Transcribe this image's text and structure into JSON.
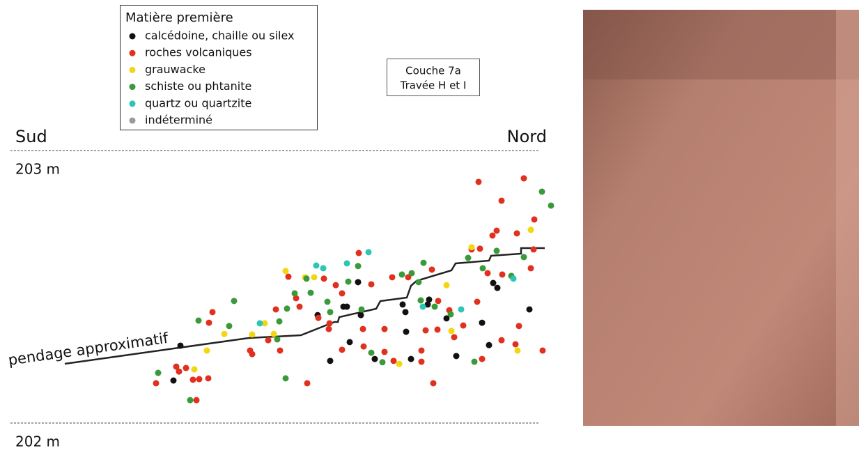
{
  "chart_data": {
    "type": "scatter",
    "legend_title": "Matière première",
    "annotations": [
      "Couche 7a",
      "Travée H et I"
    ],
    "left_label": "Sud",
    "right_label": "Nord",
    "line_label": "pendage approximatif",
    "xlim": [
      0,
      760
    ],
    "ylim": [
      202,
      203
    ],
    "yticks": [
      {
        "value": 203,
        "label": "203 m"
      },
      {
        "value": 202,
        "label": "202 m"
      }
    ],
    "grid": true,
    "series": [
      {
        "name": "calcédoine, chaille ou silex",
        "color": "#111111",
        "x": [
          244,
          234,
          499,
          478,
          483,
          503,
          441,
          563,
          601,
          599,
          567,
          626,
          693,
          699,
          677,
          745,
          687,
          640,
          575,
          523,
          459,
          487,
          568
        ],
        "values": [
          202.284,
          202.156,
          202.517,
          202.427,
          202.427,
          202.396,
          202.396,
          202.435,
          202.453,
          202.435,
          202.407,
          202.384,
          202.514,
          202.496,
          202.368,
          202.417,
          202.286,
          202.246,
          202.235,
          202.235,
          202.228,
          202.297,
          202.335
        ]
      },
      {
        "name": "roches volcaniques",
        "color": "#e0301e",
        "x": [
          672,
          737,
          705,
          752,
          727,
          698,
          692,
          751,
          674,
          706,
          685,
          670,
          730,
          764,
          725,
          705,
          677,
          650,
          637,
          613,
          596,
          590,
          590,
          607,
          550,
          537,
          507,
          506,
          537,
          476,
          457,
          426,
          387,
          370,
          344,
          347,
          381,
          415,
          410,
          442,
          458,
          467,
          476,
          450,
          399,
          518,
          500,
          548,
          571,
          605,
          614,
          630,
          285,
          290,
          271,
          284,
          262,
          252,
          242,
          238,
          267,
          209,
          662,
          747
        ],
        "values": [
          202.885,
          202.898,
          202.816,
          202.747,
          202.696,
          202.706,
          202.688,
          202.637,
          202.64,
          202.545,
          202.55,
          202.445,
          202.356,
          202.266,
          202.289,
          202.304,
          202.235,
          202.358,
          202.315,
          202.343,
          202.34,
          202.266,
          202.225,
          202.146,
          202.228,
          202.261,
          202.281,
          202.345,
          202.345,
          202.269,
          202.345,
          202.146,
          202.266,
          202.304,
          202.266,
          202.253,
          202.417,
          202.427,
          202.458,
          202.386,
          202.366,
          202.506,
          202.476,
          202.53,
          202.537,
          202.509,
          202.624,
          202.535,
          202.535,
          202.563,
          202.448,
          202.414,
          202.368,
          202.407,
          202.161,
          202.164,
          202.159,
          202.202,
          202.189,
          202.207,
          202.084,
          202.146,
          202.637,
          202.568
        ]
      },
      {
        "name": "grauwacke",
        "color": "#f2d612",
        "x": [
          747,
          662,
          395,
          423,
          436,
          365,
          378,
          347,
          307,
          282,
          264,
          558,
          728,
          633,
          626
        ],
        "values": [
          202.709,
          202.645,
          202.558,
          202.535,
          202.535,
          202.366,
          202.327,
          202.325,
          202.327,
          202.266,
          202.197,
          202.217,
          202.266,
          202.338,
          202.506
        ]
      },
      {
        "name": "schiste ou phtanite",
        "color": "#3a9a3a",
        "x": [
          763,
          776,
          737,
          698,
          678,
          657,
          719,
          666,
          632,
          593,
          576,
          562,
          586,
          589,
          609,
          504,
          499,
          485,
          455,
          459,
          431,
          408,
          397,
          386,
          383,
          321,
          314,
          270,
          212,
          258,
          395,
          518,
          534,
          425
        ],
        "values": [
          202.849,
          202.798,
          202.609,
          202.632,
          202.568,
          202.606,
          202.54,
          202.225,
          202.399,
          202.588,
          202.55,
          202.545,
          202.517,
          202.45,
          202.427,
          202.417,
          202.576,
          202.519,
          202.445,
          202.407,
          202.478,
          202.476,
          202.42,
          202.373,
          202.307,
          202.448,
          202.356,
          202.376,
          202.184,
          202.084,
          202.164,
          202.258,
          202.223,
          202.53
        ]
      },
      {
        "name": "quartz ou quartzite",
        "color": "#2ec4b6",
        "x": [
          439,
          449,
          483,
          514,
          592,
          647,
          358,
          722
        ],
        "values": [
          202.578,
          202.568,
          202.586,
          202.627,
          202.427,
          202.417,
          202.366,
          202.53
        ]
      },
      {
        "name": "indéterminé",
        "color": "#9a9a9a",
        "x": [],
        "values": []
      }
    ]
  }
}
